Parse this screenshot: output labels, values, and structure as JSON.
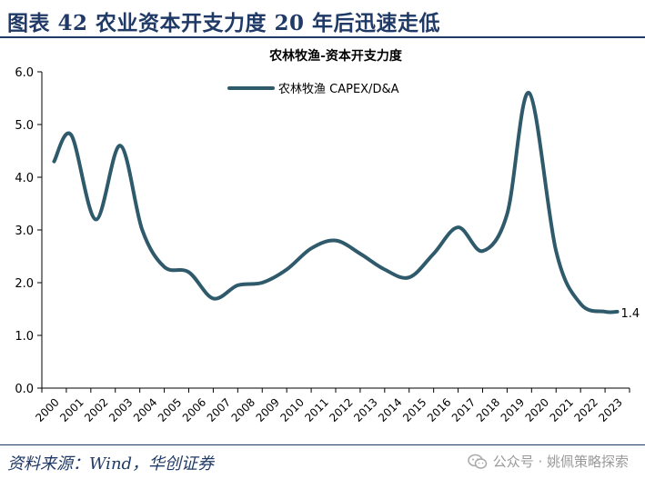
{
  "header": {
    "title": "图表 42  农业资本开支力度 20 年后迅速走低"
  },
  "footer": {
    "source": "资料来源：Wind，华创证券",
    "watermark": "公众号 · 姚佩策略探索",
    "watermark_icon": "wechat-icon"
  },
  "chart_data": {
    "type": "line",
    "title": "农林牧渔-资本开支力度",
    "xlabel": "",
    "ylabel": "",
    "ylim": [
      0,
      6
    ],
    "yticks": [
      "0.0",
      "1.0",
      "2.0",
      "3.0",
      "4.0",
      "5.0",
      "6.0"
    ],
    "grid": false,
    "legend_position": "top-center",
    "categories": [
      "2000",
      "2001",
      "2002",
      "2003",
      "2004",
      "2005",
      "2006",
      "2007",
      "2008",
      "2009",
      "2010",
      "2011",
      "2012",
      "2013",
      "2014",
      "2015",
      "2016",
      "2017",
      "2018",
      "2019",
      "2020",
      "2021",
      "2022",
      "2023"
    ],
    "series": [
      {
        "name": "农林牧渔 CAPEX/D&A",
        "color": "#2e5a6b",
        "points": [
          [
            0.0,
            4.3
          ],
          [
            0.7,
            4.8
          ],
          [
            1.7,
            3.2
          ],
          [
            2.7,
            4.6
          ],
          [
            3.6,
            3.0
          ],
          [
            4.5,
            2.3
          ],
          [
            5.5,
            2.2
          ],
          [
            6.5,
            1.7
          ],
          [
            7.5,
            1.95
          ],
          [
            8.5,
            2.0
          ],
          [
            9.5,
            2.25
          ],
          [
            10.5,
            2.65
          ],
          [
            11.5,
            2.8
          ],
          [
            12.5,
            2.55
          ],
          [
            13.5,
            2.25
          ],
          [
            14.5,
            2.1
          ],
          [
            15.5,
            2.55
          ],
          [
            16.5,
            3.05
          ],
          [
            17.5,
            2.6
          ],
          [
            18.5,
            3.3
          ],
          [
            19.4,
            5.6
          ],
          [
            20.5,
            2.6
          ],
          [
            21.5,
            1.6
          ],
          [
            22.5,
            1.45
          ],
          [
            23.0,
            1.45
          ]
        ]
      }
    ],
    "annotations": [
      {
        "x": 23.0,
        "y": 1.45,
        "text": "1.4"
      }
    ]
  }
}
